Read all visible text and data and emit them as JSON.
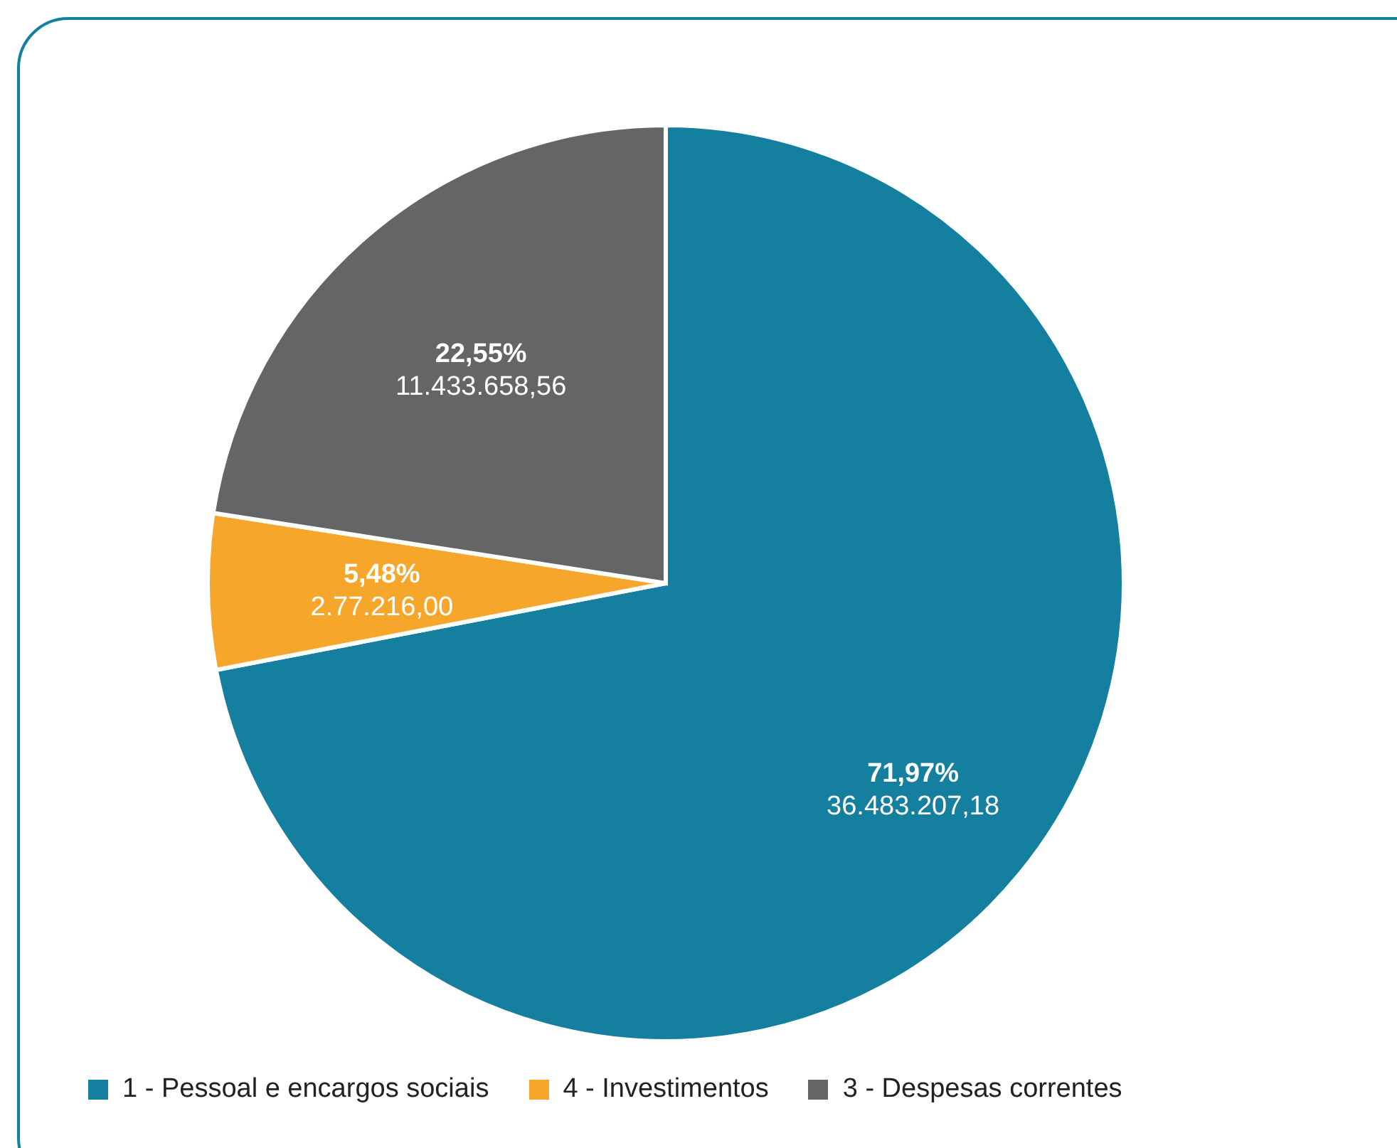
{
  "chart_data": {
    "type": "pie",
    "categories": [
      "1 - Pessoal e encargos sociais",
      "4 - Investimentos",
      "3 - Despesas correntes"
    ],
    "values": [
      71.97,
      5.48,
      22.55
    ],
    "colors": [
      "#147f9e",
      "#f6a72b",
      "#636566"
    ],
    "value_labels": [
      "71,97%",
      "5,48%",
      "22,55%"
    ],
    "annotations": [
      {
        "text": "36.483.207,18",
        "x": "1 - Pessoal e encargos sociais"
      },
      {
        "text": "2.77.216,00",
        "x": "4 - Investimentos"
      },
      {
        "text": "11.433.658,56",
        "x": "3 - Despesas correntes"
      }
    ],
    "legend": "bottom"
  }
}
